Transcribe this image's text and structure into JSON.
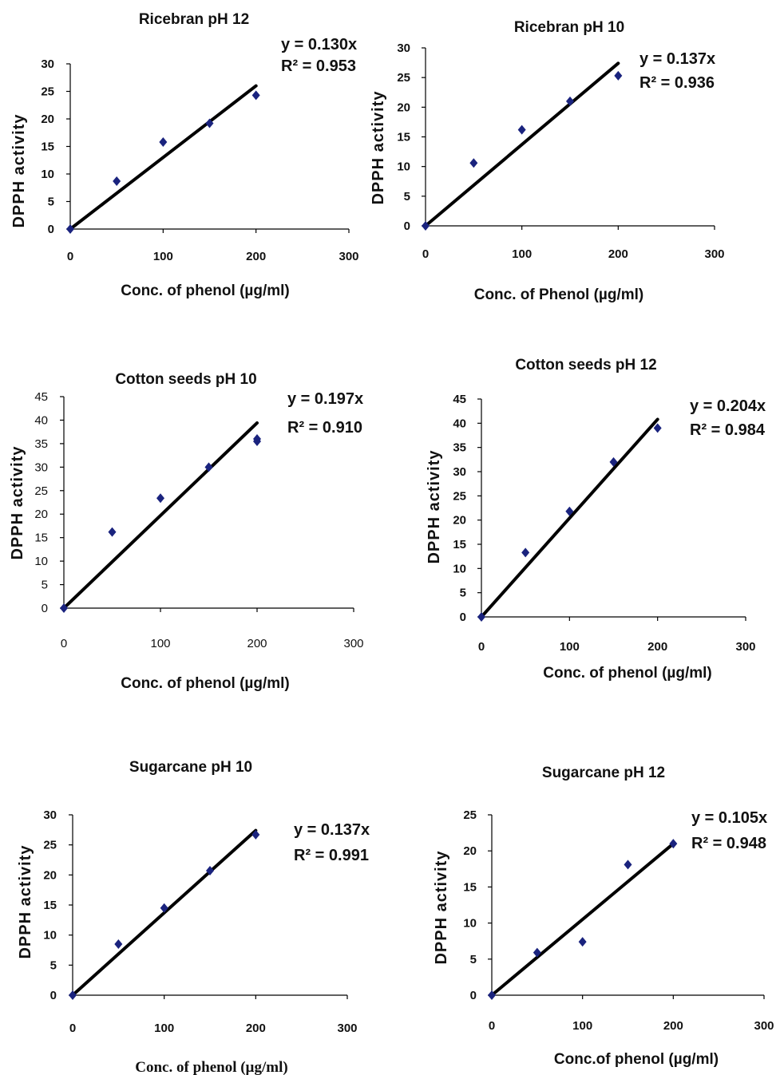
{
  "chart_data": [
    {
      "type": "scatter",
      "title": "Ricebran pH 12",
      "xlabel": "Conc. of phenol (µg/ml)",
      "ylabel": "DPPH activity",
      "xlim": [
        0,
        300
      ],
      "ylim": [
        0,
        30
      ],
      "xticks": [
        "0",
        "100",
        "200",
        "300"
      ],
      "yticks": [
        "0",
        "5",
        "10",
        "15",
        "20",
        "25",
        "30"
      ],
      "points": {
        "x": [
          0,
          50,
          100,
          150,
          200
        ],
        "y": [
          0,
          8.7,
          15.8,
          19.2,
          24.3
        ]
      },
      "trendline": {
        "slope": 0.13,
        "x_end": 200
      },
      "equation": "y = 0.130x",
      "r2": "R² = 0.953",
      "marker_color": "#1a237e"
    },
    {
      "type": "scatter",
      "title": "Ricebran pH 10",
      "xlabel": "Conc. of Phenol (µg/ml)",
      "ylabel": "DPPH activity",
      "xlim": [
        0,
        300
      ],
      "ylim": [
        0,
        30
      ],
      "xticks": [
        "0",
        "100",
        "200",
        "300"
      ],
      "yticks": [
        "0",
        "5",
        "10",
        "15",
        "20",
        "25",
        "30"
      ],
      "points": {
        "x": [
          0,
          50,
          100,
          150,
          200
        ],
        "y": [
          0,
          10.6,
          16.2,
          21.0,
          25.3
        ]
      },
      "trendline": {
        "slope": 0.137,
        "x_end": 200
      },
      "equation": "y = 0.137x",
      "r2": "R² = 0.936",
      "marker_color": "#1a237e"
    },
    {
      "type": "scatter",
      "title": "Cotton seeds pH 10",
      "xlabel": "Conc. of phenol (µg/ml)",
      "ylabel": "DPPH activity",
      "xlim": [
        0,
        300
      ],
      "ylim": [
        0,
        45
      ],
      "xticks": [
        "0",
        "100",
        "200",
        "300"
      ],
      "yticks": [
        "0",
        "5",
        "10",
        "15",
        "20",
        "25",
        "30",
        "35",
        "40",
        "45"
      ],
      "points": {
        "x": [
          0,
          50,
          100,
          150,
          200,
          200
        ],
        "y": [
          0,
          16.2,
          23.4,
          30.0,
          35.5,
          36.0
        ]
      },
      "trendline": {
        "slope": 0.197,
        "x_end": 200
      },
      "equation": "y = 0.197x",
      "r2": "R² = 0.910",
      "marker_color": "#1a237e"
    },
    {
      "type": "scatter",
      "title": "Cotton seeds pH 12",
      "xlabel": "Conc. of phenol (µg/ml)",
      "ylabel": "DPPH activity",
      "xlim": [
        0,
        300
      ],
      "ylim": [
        0,
        45
      ],
      "xticks": [
        "0",
        "100",
        "200",
        "300"
      ],
      "yticks": [
        "0",
        "5",
        "10",
        "15",
        "20",
        "25",
        "30",
        "35",
        "40",
        "45"
      ],
      "points": {
        "x": [
          0,
          50,
          100,
          150,
          200
        ],
        "y": [
          0,
          13.3,
          21.8,
          32.0,
          39.0
        ]
      },
      "trendline": {
        "slope": 0.204,
        "x_end": 200
      },
      "equation": "y = 0.204x",
      "r2": "R² = 0.984",
      "marker_color": "#1a237e"
    },
    {
      "type": "scatter",
      "title": "Sugarcane pH 10",
      "xlabel": "Conc. of phenol (µg/ml)",
      "ylabel": "DPPH activity",
      "xlim": [
        0,
        300
      ],
      "ylim": [
        0,
        30
      ],
      "xticks": [
        "0",
        "100",
        "200",
        "300"
      ],
      "yticks": [
        "0",
        "5",
        "10",
        "15",
        "20",
        "25",
        "30"
      ],
      "points": {
        "x": [
          0,
          50,
          100,
          150,
          200
        ],
        "y": [
          0,
          8.5,
          14.5,
          20.7,
          26.7
        ]
      },
      "trendline": {
        "slope": 0.137,
        "x_end": 200
      },
      "equation": "y = 0.137x",
      "r2": "R² = 0.991",
      "marker_color": "#1a237e"
    },
    {
      "type": "scatter",
      "title": "Sugarcane pH 12",
      "xlabel": "Conc.of phenol (µg/ml)",
      "ylabel": "DPPH activity",
      "xlim": [
        0,
        300
      ],
      "ylim": [
        0,
        25
      ],
      "xticks": [
        "0",
        "100",
        "200",
        "300"
      ],
      "yticks": [
        "0",
        "5",
        "10",
        "15",
        "20",
        "25"
      ],
      "points": {
        "x": [
          0,
          50,
          100,
          150,
          200
        ],
        "y": [
          0,
          5.9,
          7.4,
          18.1,
          21.0
        ]
      },
      "trendline": {
        "slope": 0.105,
        "x_end": 200
      },
      "equation": "y = 0.105x",
      "r2": "R² = 0.948",
      "marker_color": "#1a237e"
    }
  ]
}
